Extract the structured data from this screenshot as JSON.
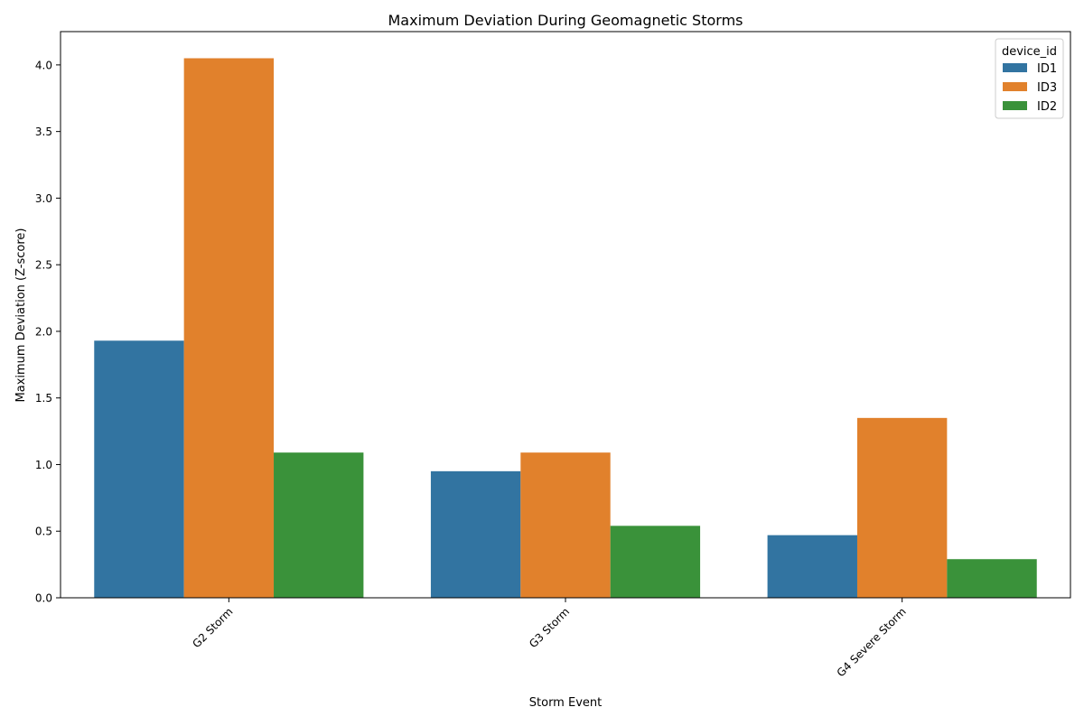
{
  "chart_data": {
    "type": "bar",
    "title": "Maximum Deviation During Geomagnetic Storms",
    "xlabel": "Storm Event",
    "ylabel": "Maximum Deviation (Z-score)",
    "categories": [
      "G2 Storm",
      "G3 Storm",
      "G4 Severe Storm"
    ],
    "series": [
      {
        "name": "ID1",
        "color": "#3274a1",
        "values": [
          1.93,
          0.95,
          0.47
        ]
      },
      {
        "name": "ID3",
        "color": "#e1812c",
        "values": [
          4.05,
          1.09,
          1.35
        ]
      },
      {
        "name": "ID2",
        "color": "#3a923a",
        "values": [
          1.09,
          0.54,
          0.29
        ]
      }
    ],
    "ylim": [
      0,
      4.25
    ],
    "yticks": [
      "0.0",
      "0.5",
      "1.0",
      "1.5",
      "2.0",
      "2.5",
      "3.0",
      "3.5",
      "4.0"
    ],
    "legend": {
      "title": "device_id",
      "position": "top-right"
    },
    "grid": false,
    "xtick_rotation": "45 degrees"
  }
}
